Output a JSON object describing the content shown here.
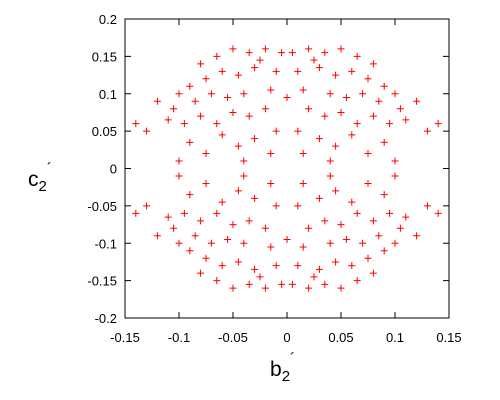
{
  "chart_data": {
    "type": "scatter",
    "xlabel_parts": [
      "b",
      "2",
      "´"
    ],
    "ylabel_parts": [
      "c",
      "2",
      "´"
    ],
    "color": "#ff0000",
    "xlim": [
      -0.15,
      0.15
    ],
    "ylim": [
      -0.2,
      0.2
    ],
    "xticks": [
      -0.15,
      -0.1,
      -0.05,
      0,
      0.05,
      0.1,
      0.15
    ],
    "yticks": [
      -0.2,
      -0.15,
      -0.1,
      -0.05,
      0,
      0.05,
      0.1,
      0.15,
      0.2
    ],
    "x": [
      0.005,
      0.02,
      0.035,
      0.05,
      0.065,
      0.08,
      0.01,
      0.03,
      0.045,
      0.06,
      0.075,
      0.09,
      0.015,
      0.04,
      0.055,
      0.07,
      0.085,
      0.1,
      0.105,
      0.02,
      0.035,
      0.05,
      0.065,
      0.08,
      0.095,
      0.11,
      0.01,
      0.03,
      0.045,
      0.06,
      0.075,
      0.09,
      0.1,
      0.015,
      0.04,
      0.12,
      0.13,
      0.14,
      0,
      0.025,
      -0.005,
      -0.02,
      -0.035,
      -0.05,
      -0.065,
      -0.08,
      -0.01,
      -0.03,
      -0.045,
      -0.06,
      -0.075,
      -0.09,
      -0.015,
      -0.04,
      -0.055,
      -0.07,
      -0.085,
      -0.1,
      -0.105,
      -0.02,
      -0.035,
      -0.05,
      -0.065,
      -0.08,
      -0.095,
      -0.11,
      -0.01,
      -0.03,
      -0.045,
      -0.06,
      -0.075,
      -0.09,
      -0.1,
      -0.015,
      -0.04,
      -0.12,
      -0.13,
      -0.14,
      0,
      -0.025,
      -0.005,
      -0.02,
      -0.035,
      -0.05,
      -0.065,
      -0.08,
      -0.01,
      -0.03,
      -0.045,
      -0.06,
      -0.075,
      -0.09,
      -0.015,
      -0.04,
      -0.055,
      -0.07,
      -0.085,
      -0.1,
      -0.105,
      -0.02,
      -0.035,
      -0.05,
      -0.065,
      -0.08,
      -0.095,
      -0.11,
      -0.01,
      -0.03,
      -0.045,
      -0.06,
      -0.075,
      -0.09,
      -0.1,
      -0.015,
      -0.04,
      -0.12,
      -0.13,
      -0.14,
      0,
      -0.025,
      0.005,
      0.02,
      0.035,
      0.05,
      0.065,
      0.08,
      0.01,
      0.03,
      0.045,
      0.06,
      0.075,
      0.09,
      0.015,
      0.04,
      0.055,
      0.07,
      0.085,
      0.1,
      0.105,
      0.02,
      0.035,
      0.05,
      0.065,
      0.08,
      0.095,
      0.11,
      0.01,
      0.03,
      0.045,
      0.06,
      0.075,
      0.09,
      0.1,
      0.015,
      0.04,
      0.12,
      0.13,
      0.14,
      0,
      0.025
    ],
    "y": [
      0.155,
      0.16,
      0.155,
      0.16,
      0.15,
      0.14,
      0.13,
      0.135,
      0.125,
      0.13,
      0.12,
      0.11,
      0.105,
      0.1,
      0.095,
      0.1,
      0.09,
      0.1,
      0.08,
      0.08,
      0.07,
      0.075,
      0.06,
      0.07,
      0.06,
      0.065,
      0.05,
      0.04,
      0.03,
      0.045,
      0.02,
      0.035,
      0.01,
      0.02,
      0.01,
      0.09,
      0.05,
      0.06,
      0.095,
      0.145,
      0.155,
      0.16,
      0.155,
      0.16,
      0.15,
      0.14,
      0.13,
      0.135,
      0.125,
      0.13,
      0.12,
      0.11,
      0.105,
      0.1,
      0.095,
      0.1,
      0.09,
      0.1,
      0.08,
      0.08,
      0.07,
      0.075,
      0.06,
      0.07,
      0.06,
      0.065,
      0.05,
      0.04,
      0.03,
      0.045,
      0.02,
      0.035,
      0.01,
      0.02,
      0.01,
      0.09,
      0.05,
      0.06,
      0.095,
      0.145,
      -0.155,
      -0.16,
      -0.155,
      -0.16,
      -0.15,
      -0.14,
      -0.13,
      -0.135,
      -0.125,
      -0.13,
      -0.12,
      -0.11,
      -0.105,
      -0.1,
      -0.095,
      -0.1,
      -0.09,
      -0.1,
      -0.08,
      -0.08,
      -0.07,
      -0.075,
      -0.06,
      -0.07,
      -0.06,
      -0.065,
      -0.05,
      -0.04,
      -0.03,
      -0.045,
      -0.02,
      -0.035,
      -0.01,
      -0.02,
      -0.01,
      -0.09,
      -0.05,
      -0.06,
      -0.095,
      -0.145,
      -0.155,
      -0.16,
      -0.155,
      -0.16,
      -0.15,
      -0.14,
      -0.13,
      -0.135,
      -0.125,
      -0.13,
      -0.12,
      -0.11,
      -0.105,
      -0.1,
      -0.095,
      -0.1,
      -0.09,
      -0.1,
      -0.08,
      -0.08,
      -0.07,
      -0.075,
      -0.06,
      -0.07,
      -0.06,
      -0.065,
      -0.05,
      -0.04,
      -0.03,
      -0.045,
      -0.02,
      -0.035,
      -0.01,
      -0.02,
      -0.01,
      -0.09,
      -0.05,
      -0.06,
      -0.095,
      -0.145
    ]
  }
}
